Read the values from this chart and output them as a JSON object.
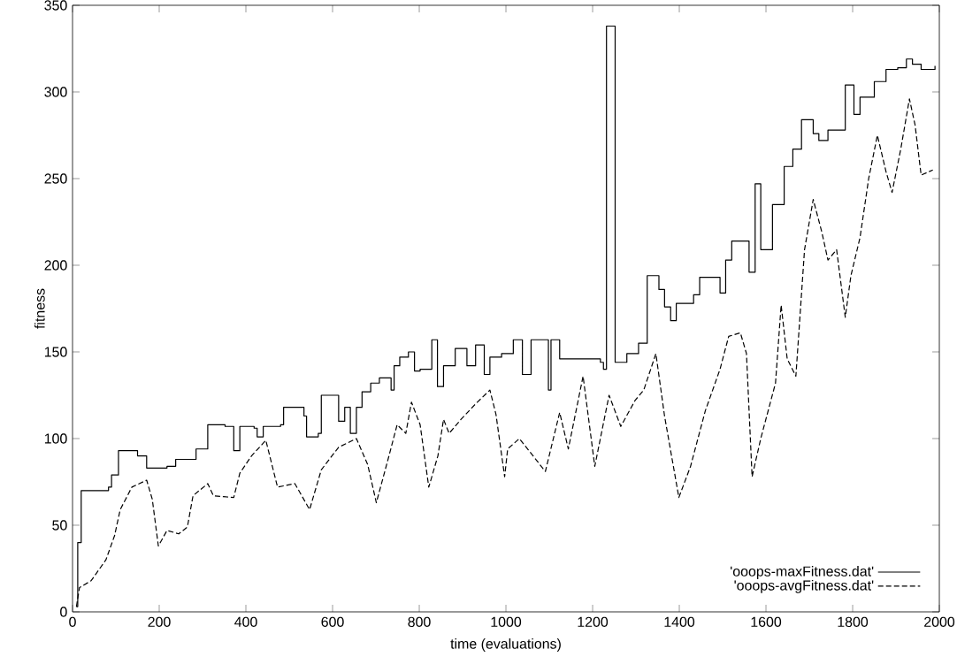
{
  "chart_data": {
    "type": "line",
    "xlabel": "time (evaluations)",
    "ylabel": "fitness",
    "xlim": [
      0,
      2000
    ],
    "ylim": [
      0,
      350
    ],
    "xticks": [
      0,
      200,
      400,
      600,
      800,
      1000,
      1200,
      1400,
      1600,
      1800,
      2000
    ],
    "yticks": [
      0,
      50,
      100,
      150,
      200,
      250,
      300,
      350
    ],
    "grid": false,
    "legend": "bottom right",
    "marker": "none",
    "series": [
      {
        "name": "'ooops-maxFitness.dat'",
        "type": "step",
        "color": "#000000",
        "line_style": "solid",
        "x": [
          9,
          12,
          20,
          83,
          90,
          106,
          150,
          171,
          218,
          238,
          285,
          312,
          352,
          372,
          386,
          419,
          426,
          440,
          480,
          487,
          534,
          540,
          567,
          574,
          614,
          628,
          641,
          655,
          668,
          688,
          708,
          735,
          742,
          755,
          775,
          789,
          802,
          829,
          842,
          856,
          883,
          910,
          930,
          950,
          963,
          990,
          1017,
          1038,
          1058,
          1098,
          1104,
          1124,
          1218,
          1225,
          1232,
          1252,
          1279,
          1306,
          1326,
          1353,
          1366,
          1380,
          1393,
          1433,
          1447,
          1494,
          1507,
          1521,
          1561,
          1575,
          1588,
          1615,
          1642,
          1662,
          1682,
          1709,
          1722,
          1743,
          1783,
          1803,
          1817,
          1850,
          1877,
          1904,
          1924,
          1938,
          1958,
          1990
        ],
        "values": [
          3,
          40,
          70,
          72,
          79,
          93,
          90,
          83,
          84,
          88,
          94,
          108,
          107,
          93,
          107,
          106,
          101,
          107,
          108,
          118,
          113,
          101,
          103,
          125,
          110,
          118,
          103,
          118,
          127,
          132,
          135,
          128,
          142,
          147,
          150,
          139,
          140,
          157,
          130,
          142,
          152,
          142,
          154,
          137,
          147,
          149,
          157,
          137,
          157,
          128,
          157,
          146,
          144,
          140,
          338,
          144,
          149,
          155,
          194,
          186,
          176,
          168,
          178,
          183,
          193,
          184,
          203,
          214,
          196,
          247,
          209,
          235,
          257,
          267,
          284,
          276,
          272,
          278,
          304,
          287,
          297,
          306,
          313,
          314,
          319,
          316,
          313,
          315
        ]
      },
      {
        "name": "'ooops-avgFitness.dat'",
        "color": "#000000",
        "line_style": "dashed",
        "x": [
          9,
          16,
          43,
          77,
          97,
          110,
          137,
          171,
          184,
          198,
          218,
          245,
          265,
          278,
          312,
          325,
          372,
          386,
          413,
          446,
          473,
          513,
          547,
          574,
          614,
          655,
          681,
          701,
          728,
          749,
          769,
          782,
          802,
          822,
          843,
          856,
          869,
          896,
          930,
          963,
          977,
          997,
          1004,
          1031,
          1091,
          1124,
          1144,
          1178,
          1205,
          1238,
          1265,
          1298,
          1318,
          1346,
          1366,
          1399,
          1426,
          1460,
          1494,
          1514,
          1541,
          1555,
          1568,
          1588,
          1622,
          1635,
          1649,
          1669,
          1689,
          1709,
          1729,
          1743,
          1763,
          1783,
          1796,
          1817,
          1837,
          1857,
          1877,
          1891,
          1911,
          1931,
          1944,
          1958,
          1985
        ],
        "values": [
          3,
          14,
          18,
          30,
          44,
          59,
          72,
          76,
          65,
          38,
          47,
          45,
          49,
          67,
          74,
          67,
          66,
          80,
          90,
          99,
          72,
          74,
          59,
          82,
          95,
          100,
          85,
          63,
          88,
          108,
          103,
          121,
          108,
          72,
          90,
          111,
          103,
          111,
          120,
          128,
          114,
          78,
          94,
          100,
          81,
          115,
          94,
          136,
          84,
          125,
          107,
          122,
          128,
          149,
          113,
          66,
          84,
          116,
          140,
          159,
          161,
          149,
          78,
          100,
          132,
          177,
          146,
          136,
          209,
          238,
          219,
          203,
          209,
          170,
          194,
          216,
          250,
          275,
          254,
          242,
          267,
          296,
          281,
          252,
          255
        ]
      }
    ]
  }
}
